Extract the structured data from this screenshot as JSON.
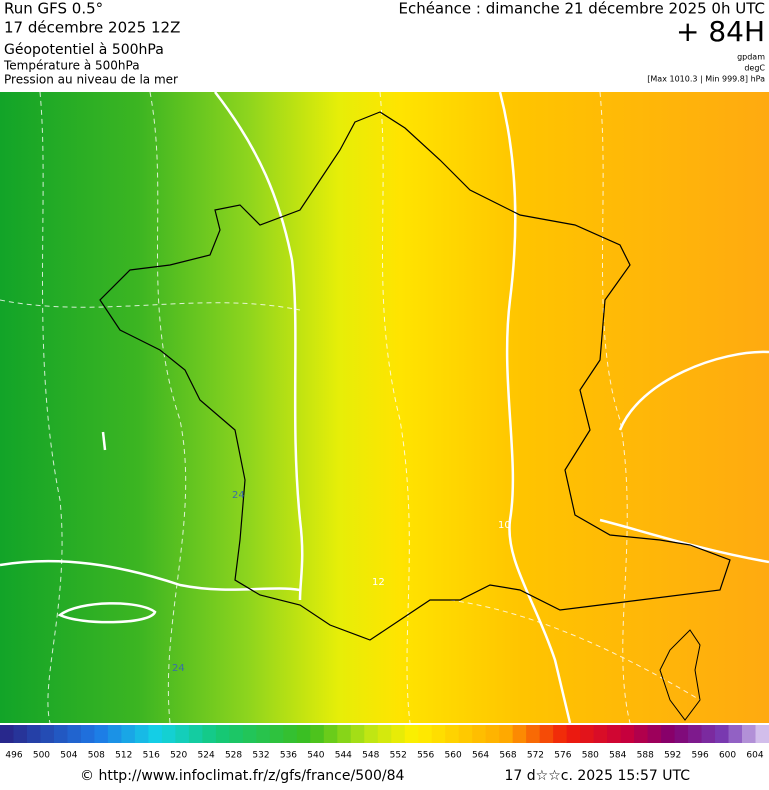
{
  "header": {
    "model": "Run GFS 0.5°",
    "run_date": "17 décembre 2025 12Z",
    "fields": [
      "Géopotentiel à 500hPa",
      "Température à 500hPa",
      "Pression au niveau de la mer"
    ],
    "valid_time": "Echéance : dimanche 21 décembre 2025 0h UTC",
    "lead": "+ 84H",
    "units": [
      "gpdam",
      "degC"
    ],
    "pressure_range": "[Max 1010.3 | Min 999.8] hPa"
  },
  "map": {
    "contour_labels": [
      "24",
      "24",
      "10",
      "12"
    ]
  },
  "colorbar": {
    "ticks": [
      496,
      500,
      504,
      508,
      512,
      516,
      520,
      524,
      528,
      532,
      536,
      540,
      544,
      548,
      552,
      556,
      560,
      564,
      568,
      572,
      576,
      580,
      584,
      588,
      592,
      596,
      600,
      604
    ]
  },
  "footer": {
    "url": "© http://www.infoclimat.fr/z/gfs/france/500/84",
    "timestamp": "17 d☆☆c. 2025 15:57 UTC"
  }
}
